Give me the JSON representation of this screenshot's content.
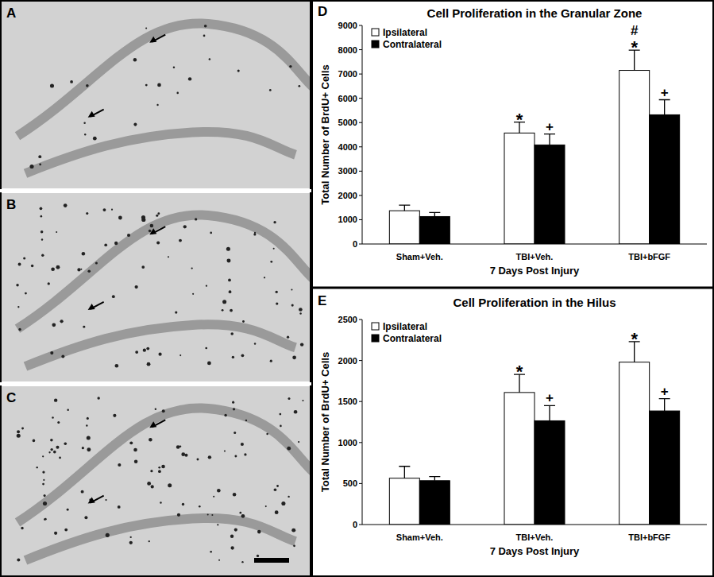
{
  "image_panels": [
    {
      "label": "A"
    },
    {
      "label": "B"
    },
    {
      "label": "C"
    }
  ],
  "chart_panel_labels": [
    "D",
    "E"
  ],
  "chart_data": [
    {
      "type": "bar",
      "title": "Cell Proliferation in the Granular Zone",
      "x_label": "7 Days Post Injury",
      "y_label": "Total Number of BrdU+ Cells",
      "categories": [
        "Sham+Veh.",
        "TBI+Veh.",
        "TBI+bFGF"
      ],
      "series": [
        {
          "name": "Ipsilateral",
          "color": "#ffffff",
          "values": [
            1370,
            4570,
            7150
          ],
          "errors": [
            230,
            450,
            830
          ],
          "significance": [
            null,
            [
              "*"
            ],
            [
              "#",
              "*"
            ]
          ]
        },
        {
          "name": "Contralateral",
          "color": "#000000",
          "values": [
            1130,
            4080,
            5320
          ],
          "errors": [
            170,
            450,
            620
          ],
          "significance": [
            null,
            [
              "+"
            ],
            [
              "+"
            ]
          ]
        }
      ],
      "ylim": [
        0,
        9000
      ],
      "yticks": [
        0,
        1000,
        2000,
        3000,
        4000,
        5000,
        6000,
        7000,
        8000,
        9000
      ],
      "grid": false,
      "legend": "upper left"
    },
    {
      "type": "bar",
      "title": "Cell Proliferation in the Hilus",
      "x_label": "7 Days Post Injury",
      "y_label": "Total Number of BrdU+ Cells",
      "categories": [
        "Sham+Veh.",
        "TBI+Veh.",
        "TBI+bFGF"
      ],
      "series": [
        {
          "name": "Ipsilateral",
          "color": "#ffffff",
          "values": [
            565,
            1610,
            1980
          ],
          "errors": [
            145,
            220,
            250
          ],
          "significance": [
            null,
            [
              "*"
            ],
            [
              "*"
            ]
          ]
        },
        {
          "name": "Contralateral",
          "color": "#000000",
          "values": [
            535,
            1265,
            1385
          ],
          "errors": [
            50,
            185,
            150
          ],
          "significance": [
            null,
            [
              "+"
            ],
            [
              "+"
            ]
          ]
        }
      ],
      "ylim": [
        0,
        2500
      ],
      "yticks": [
        0,
        500,
        1000,
        1500,
        2000,
        2500
      ],
      "grid": false,
      "legend": "upper left"
    }
  ]
}
